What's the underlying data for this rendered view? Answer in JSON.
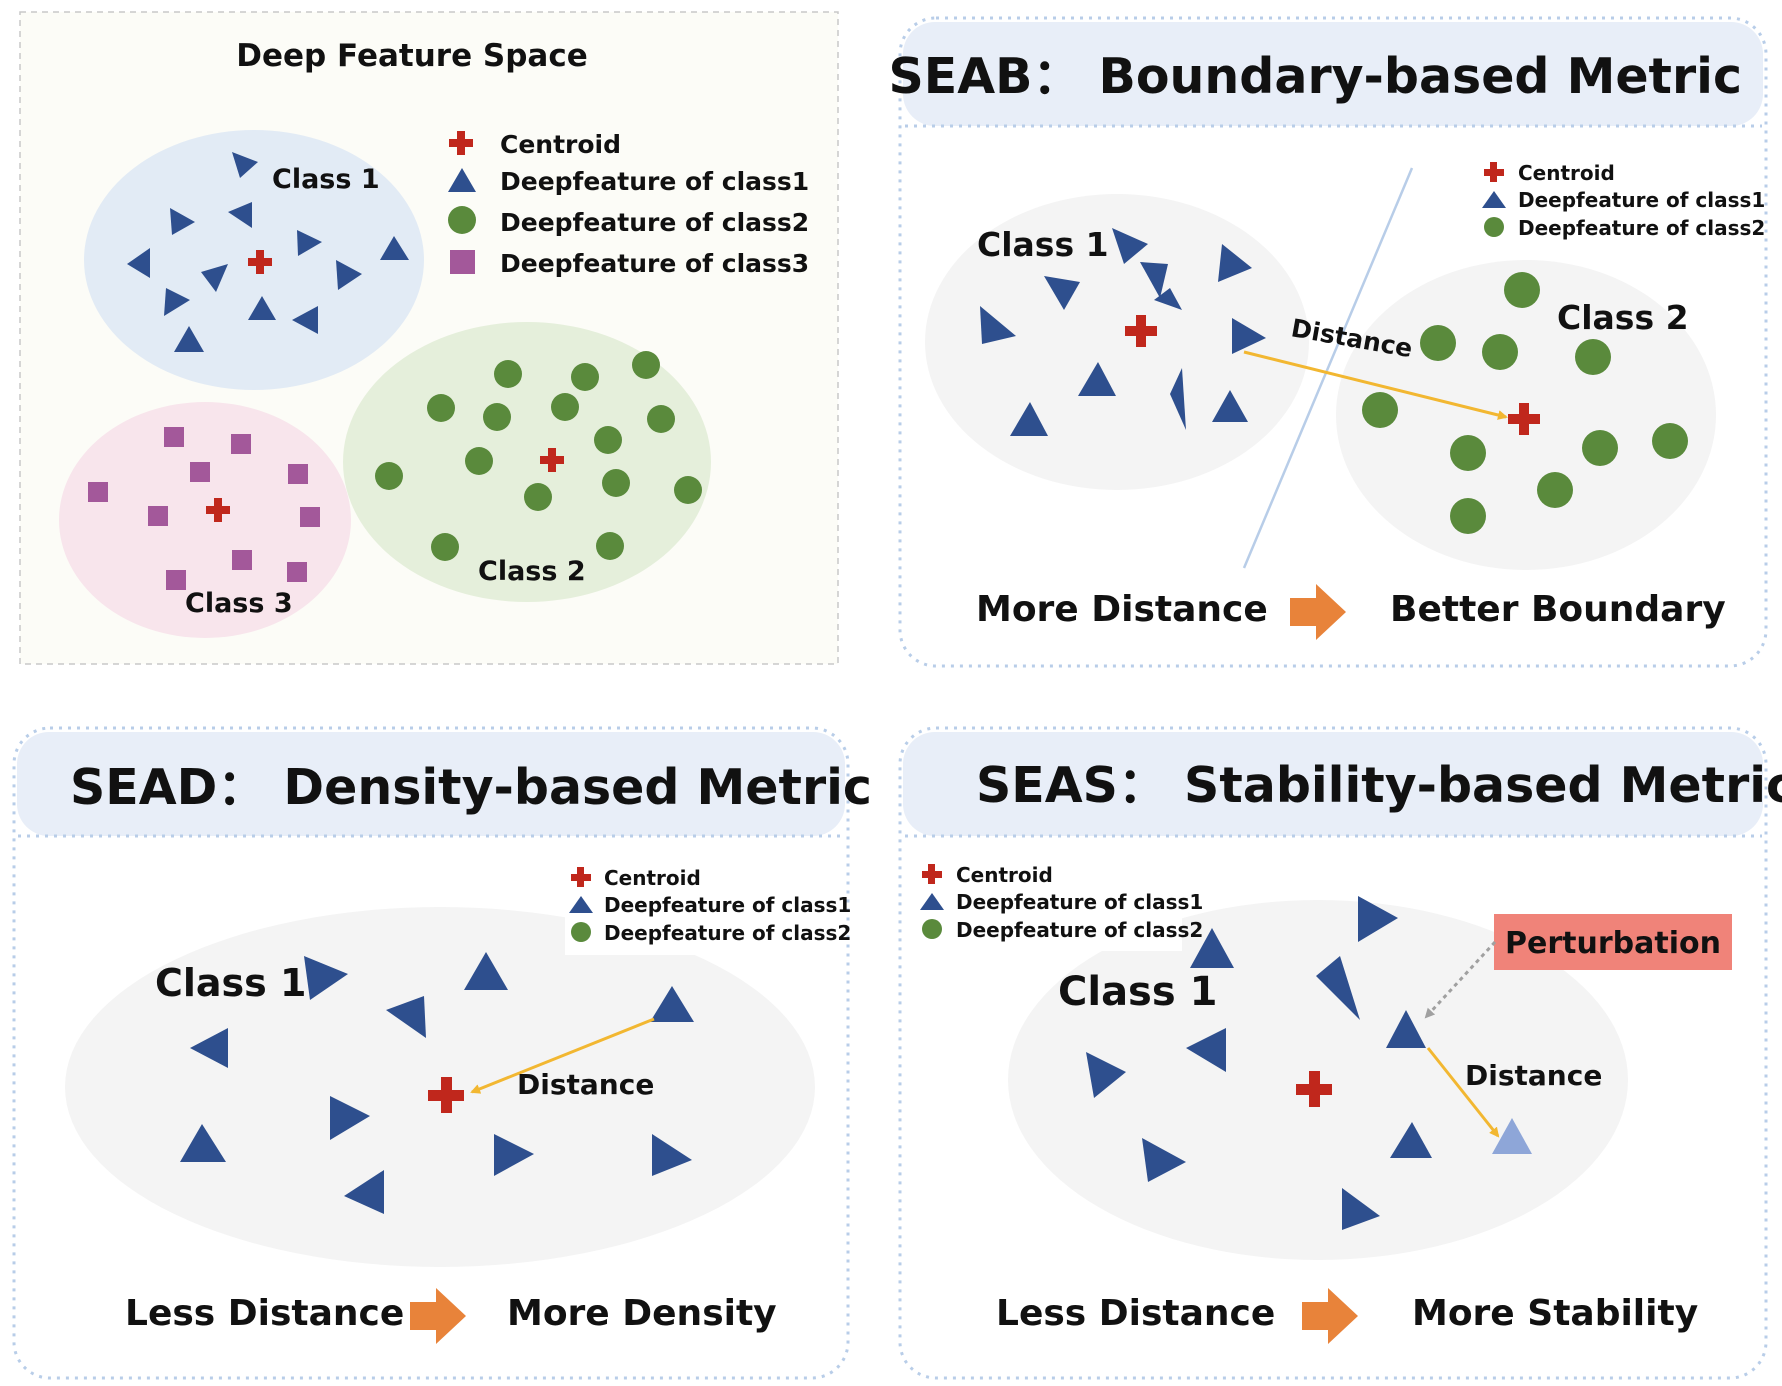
{
  "colors": {
    "triangle": "#2e4f8e",
    "triangle_light": "#8ea6d8",
    "circle": "#5a8a3c",
    "square": "#a3589a",
    "centroid": "#c0271c",
    "arrow": "#f2b731",
    "big_arrow": "#e8833a",
    "perturb_box": "#f08379",
    "panel_header": "#e8eef8",
    "panel_border": "#b8cde8",
    "class1_fill": "#e2ebf5",
    "class2_fill": "#e5efdb",
    "class3_fill": "#f8e5ec",
    "gray_fill": "#f4f4f4"
  },
  "panel_feature_space": {
    "title": "Deep Feature Space",
    "legend": {
      "centroid": "Centroid",
      "class1": "Deepfeature of class1",
      "class2": "Deepfeature of class2",
      "class3": "Deepfeature of class3"
    },
    "class1_label": "Class 1",
    "class2_label": "Class 2",
    "class3_label": "Class 3"
  },
  "panel_seab": {
    "title": "SEAB： Boundary-based Metric",
    "legend": {
      "centroid": "Centroid",
      "class1": "Deepfeature of class1",
      "class2": "Deepfeature of class2"
    },
    "class1_label": "Class 1",
    "class2_label": "Class 2",
    "distance_label": "Distance",
    "left_caption": "More Distance",
    "right_caption": "Better Boundary"
  },
  "panel_sead": {
    "title": "SEAD： Density-based Metric",
    "legend": {
      "centroid": "Centroid",
      "class1": "Deepfeature of class1",
      "class2": "Deepfeature of class2"
    },
    "class1_label": "Class 1",
    "distance_label": "Distance",
    "left_caption": "Less Distance",
    "right_caption": "More Density"
  },
  "panel_seas": {
    "title": "SEAS： Stability-based Metric",
    "legend": {
      "centroid": "Centroid",
      "class1": "Deepfeature of class1",
      "class2": "Deepfeature of class2"
    },
    "class1_label": "Class 1",
    "distance_label": "Distance",
    "perturbation_label": "Perturbation",
    "left_caption": "Less Distance",
    "right_caption": "More Stability"
  }
}
